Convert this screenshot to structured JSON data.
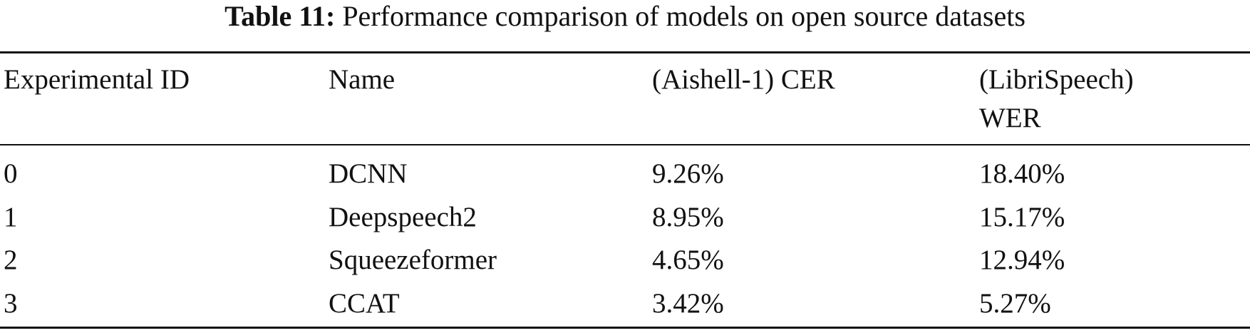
{
  "title": {
    "label": "Table 11:",
    "text": "Performance comparison of models on open source datasets"
  },
  "table": {
    "header": [
      "Experimental ID",
      "Name",
      "(Aishell-1) CER",
      "(LibriSpeech) WER"
    ],
    "rows": [
      [
        "0",
        "DCNN",
        "9.26%",
        "18.40%"
      ],
      [
        "1",
        "Deepspeech2",
        "8.95%",
        "15.17%"
      ],
      [
        "2",
        "Squeezeformer",
        "4.65%",
        "12.94%"
      ],
      [
        "3",
        "CCAT",
        "3.42%",
        "5.27%"
      ]
    ]
  }
}
